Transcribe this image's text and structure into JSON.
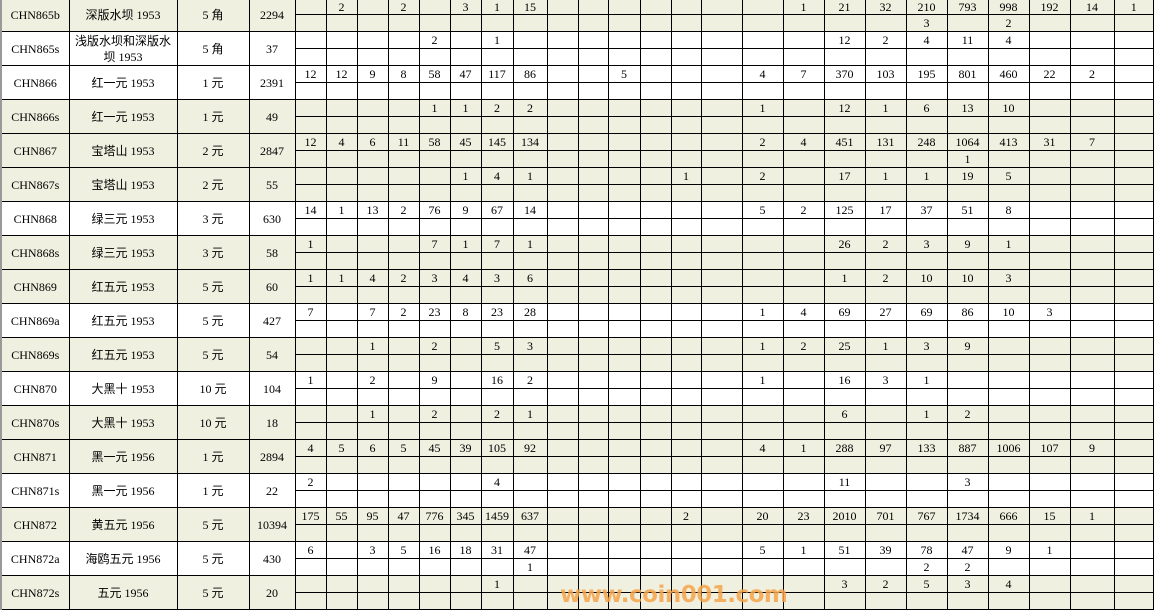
{
  "colors": {
    "row_alt": "#f0f0e1",
    "grid": "#000000",
    "watermark": "#f5a64a"
  },
  "watermark": "www.coin001.com",
  "rows": [
    {
      "code": "CHN865b",
      "name": "深版水坝 1953",
      "denom": "5 角",
      "total": "2294",
      "beige": true,
      "top": [
        "",
        "2",
        "",
        "2",
        "",
        "3",
        "1",
        "15",
        "",
        "",
        "",
        "",
        "",
        "",
        "",
        "1",
        "21",
        "32",
        "210",
        "793",
        "998",
        "192",
        "14",
        "1"
      ],
      "bottom": [
        "",
        "",
        "",
        "",
        "",
        "",
        "",
        "",
        "",
        "",
        "",
        "",
        "",
        "",
        "",
        "",
        "",
        "",
        "3",
        "",
        "2",
        "",
        "",
        ""
      ]
    },
    {
      "code": "CHN865s",
      "name": "浅版水坝和深版水坝 1953",
      "denom": "5 角",
      "total": "37",
      "beige": false,
      "top": [
        "",
        "",
        "",
        "",
        "2",
        "",
        "1",
        "",
        "",
        "",
        "",
        "",
        "",
        "",
        "",
        "",
        "12",
        "2",
        "4",
        "11",
        "4",
        "",
        "",
        ""
      ],
      "bottom": [
        "",
        "",
        "",
        "",
        "",
        "",
        "",
        "",
        "",
        "",
        "",
        "",
        "",
        "",
        "",
        "",
        "",
        "",
        "",
        "",
        "",
        "",
        "",
        ""
      ]
    },
    {
      "code": "CHN866",
      "name": "红一元 1953",
      "denom": "1 元",
      "total": "2391",
      "beige": false,
      "top": [
        "12",
        "12",
        "9",
        "8",
        "58",
        "47",
        "117",
        "86",
        "",
        "",
        "5",
        "",
        "",
        "",
        "4",
        "7",
        "370",
        "103",
        "195",
        "801",
        "460",
        "22",
        "2",
        ""
      ],
      "bottom": [
        "",
        "",
        "",
        "",
        "",
        "",
        "",
        "",
        "",
        "",
        "",
        "",
        "",
        "",
        "",
        "",
        "",
        "",
        "",
        "",
        "",
        "",
        "",
        ""
      ]
    },
    {
      "code": "CHN866s",
      "name": "红一元 1953",
      "denom": "1 元",
      "total": "49",
      "beige": true,
      "top": [
        "",
        "",
        "",
        "",
        "1",
        "1",
        "2",
        "2",
        "",
        "",
        "",
        "",
        "",
        "",
        "1",
        "",
        "12",
        "1",
        "6",
        "13",
        "10",
        "",
        "",
        ""
      ],
      "bottom": [
        "",
        "",
        "",
        "",
        "",
        "",
        "",
        "",
        "",
        "",
        "",
        "",
        "",
        "",
        "",
        "",
        "",
        "",
        "",
        "",
        "",
        "",
        "",
        ""
      ]
    },
    {
      "code": "CHN867",
      "name": "宝塔山 1953",
      "denom": "2 元",
      "total": "2847",
      "beige": true,
      "top": [
        "12",
        "4",
        "6",
        "11",
        "58",
        "45",
        "145",
        "134",
        "",
        "",
        "",
        "",
        "",
        "",
        "2",
        "4",
        "451",
        "131",
        "248",
        "1064",
        "413",
        "31",
        "7",
        ""
      ],
      "bottom": [
        "",
        "",
        "",
        "",
        "",
        "",
        "",
        "",
        "",
        "",
        "",
        "",
        "",
        "",
        "",
        "",
        "",
        "",
        "",
        "1",
        "",
        "",
        "",
        ""
      ]
    },
    {
      "code": "CHN867s",
      "name": "宝塔山 1953",
      "denom": "2 元",
      "total": "55",
      "beige": true,
      "top": [
        "",
        "",
        "",
        "",
        "",
        "1",
        "4",
        "1",
        "",
        "",
        "",
        "",
        "1",
        "",
        "2",
        "",
        "17",
        "1",
        "1",
        "19",
        "5",
        "",
        "",
        ""
      ],
      "bottom": [
        "",
        "",
        "",
        "",
        "",
        "",
        "",
        "",
        "",
        "",
        "",
        "",
        "",
        "",
        "",
        "",
        "",
        "",
        "",
        "",
        "",
        "",
        "",
        ""
      ]
    },
    {
      "code": "CHN868",
      "name": "绿三元 1953",
      "denom": "3 元",
      "total": "630",
      "beige": false,
      "top": [
        "14",
        "1",
        "13",
        "2",
        "76",
        "9",
        "67",
        "14",
        "",
        "",
        "",
        "",
        "",
        "",
        "5",
        "2",
        "125",
        "17",
        "37",
        "51",
        "8",
        "",
        "",
        ""
      ],
      "bottom": [
        "",
        "",
        "",
        "",
        "",
        "",
        "",
        "",
        "",
        "",
        "",
        "",
        "",
        "",
        "",
        "",
        "",
        "",
        "",
        "",
        "",
        "",
        "",
        ""
      ]
    },
    {
      "code": "CHN868s",
      "name": "绿三元 1953",
      "denom": "3 元",
      "total": "58",
      "beige": true,
      "top": [
        "1",
        "",
        "",
        "",
        "7",
        "1",
        "7",
        "1",
        "",
        "",
        "",
        "",
        "",
        "",
        "",
        "",
        "26",
        "2",
        "3",
        "9",
        "1",
        "",
        "",
        ""
      ],
      "bottom": [
        "",
        "",
        "",
        "",
        "",
        "",
        "",
        "",
        "",
        "",
        "",
        "",
        "",
        "",
        "",
        "",
        "",
        "",
        "",
        "",
        "",
        "",
        "",
        ""
      ]
    },
    {
      "code": "CHN869",
      "name": "红五元 1953",
      "denom": "5 元",
      "total": "60",
      "beige": true,
      "top": [
        "1",
        "1",
        "4",
        "2",
        "3",
        "4",
        "3",
        "6",
        "",
        "",
        "",
        "",
        "",
        "",
        "",
        "",
        "1",
        "2",
        "10",
        "10",
        "3",
        "",
        "",
        ""
      ],
      "bottom": [
        "",
        "",
        "",
        "",
        "",
        "",
        "",
        "",
        "",
        "",
        "",
        "",
        "",
        "",
        "",
        "",
        "",
        "",
        "",
        "",
        "",
        "",
        "",
        ""
      ]
    },
    {
      "code": "CHN869a",
      "name": "红五元 1953",
      "denom": "5 元",
      "total": "427",
      "beige": false,
      "top": [
        "7",
        "",
        "7",
        "2",
        "23",
        "8",
        "23",
        "28",
        "",
        "",
        "",
        "",
        "",
        "",
        "1",
        "4",
        "69",
        "27",
        "69",
        "86",
        "10",
        "3",
        "",
        ""
      ],
      "bottom": [
        "",
        "",
        "",
        "",
        "",
        "",
        "",
        "",
        "",
        "",
        "",
        "",
        "",
        "",
        "",
        "",
        "",
        "",
        "",
        "",
        "",
        "",
        "",
        ""
      ]
    },
    {
      "code": "CHN869s",
      "name": "红五元 1953",
      "denom": "5 元",
      "total": "54",
      "beige": true,
      "top": [
        "",
        "",
        "1",
        "",
        "2",
        "",
        "5",
        "3",
        "",
        "",
        "",
        "",
        "",
        "",
        "1",
        "2",
        "25",
        "1",
        "3",
        "9",
        "",
        "",
        "",
        ""
      ],
      "bottom": [
        "",
        "",
        "",
        "",
        "",
        "",
        "",
        "",
        "",
        "",
        "",
        "",
        "",
        "",
        "",
        "",
        "",
        "",
        "",
        "",
        "",
        "",
        "",
        ""
      ]
    },
    {
      "code": "CHN870",
      "name": "大黑十 1953",
      "denom": "10 元",
      "total": "104",
      "beige": false,
      "top": [
        "1",
        "",
        "2",
        "",
        "9",
        "",
        "16",
        "2",
        "",
        "",
        "",
        "",
        "",
        "",
        "1",
        "",
        "16",
        "3",
        "1",
        "",
        "",
        "",
        "",
        ""
      ],
      "bottom": [
        "",
        "",
        "",
        "",
        "",
        "",
        "",
        "",
        "",
        "",
        "",
        "",
        "",
        "",
        "",
        "",
        "",
        "",
        "",
        "",
        "",
        "",
        "",
        ""
      ]
    },
    {
      "code": "CHN870s",
      "name": "大黑十 1953",
      "denom": "10 元",
      "total": "18",
      "beige": true,
      "top": [
        "",
        "",
        "1",
        "",
        "2",
        "",
        "2",
        "1",
        "",
        "",
        "",
        "",
        "",
        "",
        "",
        "",
        "6",
        "",
        "1",
        "2",
        "",
        "",
        "",
        ""
      ],
      "bottom": [
        "",
        "",
        "",
        "",
        "",
        "",
        "",
        "",
        "",
        "",
        "",
        "",
        "",
        "",
        "",
        "",
        "",
        "",
        "",
        "",
        "",
        "",
        "",
        ""
      ]
    },
    {
      "code": "CHN871",
      "name": "黑一元 1956",
      "denom": "1 元",
      "total": "2894",
      "beige": true,
      "top": [
        "4",
        "5",
        "6",
        "5",
        "45",
        "39",
        "105",
        "92",
        "",
        "",
        "",
        "",
        "",
        "",
        "4",
        "1",
        "288",
        "97",
        "133",
        "887",
        "1006",
        "107",
        "9",
        ""
      ],
      "bottom": [
        "",
        "",
        "",
        "",
        "",
        "",
        "",
        "",
        "",
        "",
        "",
        "",
        "",
        "",
        "",
        "",
        "",
        "",
        "",
        "",
        "",
        "",
        "",
        ""
      ]
    },
    {
      "code": "CHN871s",
      "name": "黑一元 1956",
      "denom": "1 元",
      "total": "22",
      "beige": false,
      "top": [
        "2",
        "",
        "",
        "",
        "",
        "",
        "4",
        "",
        "",
        "",
        "",
        "",
        "",
        "",
        "",
        "",
        "11",
        "",
        "",
        "3",
        "",
        "",
        "",
        ""
      ],
      "bottom": [
        "",
        "",
        "",
        "",
        "",
        "",
        "",
        "",
        "",
        "",
        "",
        "",
        "",
        "",
        "",
        "",
        "",
        "",
        "",
        "",
        "",
        "",
        "",
        ""
      ]
    },
    {
      "code": "CHN872",
      "name": "黄五元 1956",
      "denom": "5 元",
      "total": "10394",
      "beige": true,
      "top": [
        "175",
        "55",
        "95",
        "47",
        "776",
        "345",
        "1459",
        "637",
        "",
        "",
        "",
        "",
        "2",
        "",
        "20",
        "23",
        "2010",
        "701",
        "767",
        "1734",
        "666",
        "15",
        "1",
        ""
      ],
      "bottom": [
        "",
        "",
        "",
        "",
        "",
        "",
        "",
        "",
        "",
        "",
        "",
        "",
        "",
        "",
        "",
        "",
        "",
        "",
        "",
        "",
        "",
        "",
        "",
        ""
      ]
    },
    {
      "code": "CHN872a",
      "name": "海鸥五元 1956",
      "denom": "5 元",
      "total": "430",
      "beige": false,
      "top": [
        "6",
        "",
        "3",
        "5",
        "16",
        "18",
        "31",
        "47",
        "",
        "",
        "",
        "",
        "",
        "",
        "5",
        "1",
        "51",
        "39",
        "78",
        "47",
        "9",
        "1",
        "",
        ""
      ],
      "bottom": [
        "",
        "",
        "",
        "",
        "",
        "",
        "",
        "1",
        "",
        "",
        "",
        "",
        "",
        "",
        "",
        "",
        "",
        "",
        "2",
        "2",
        "",
        "",
        "",
        ""
      ]
    },
    {
      "code": "CHN872s",
      "name": "五元 1956",
      "denom": "5 元",
      "total": "20",
      "beige": true,
      "top": [
        "",
        "",
        "",
        "",
        "",
        "",
        "1",
        "",
        "",
        "",
        "",
        "",
        "",
        "",
        "",
        "",
        "3",
        "2",
        "5",
        "3",
        "4",
        "",
        "",
        ""
      ],
      "bottom": [
        "",
        "",
        "",
        "",
        "",
        "",
        "",
        "",
        "",
        "",
        "",
        "",
        "",
        "",
        "",
        "",
        "",
        "",
        "",
        "",
        "",
        "",
        "",
        ""
      ]
    }
  ]
}
